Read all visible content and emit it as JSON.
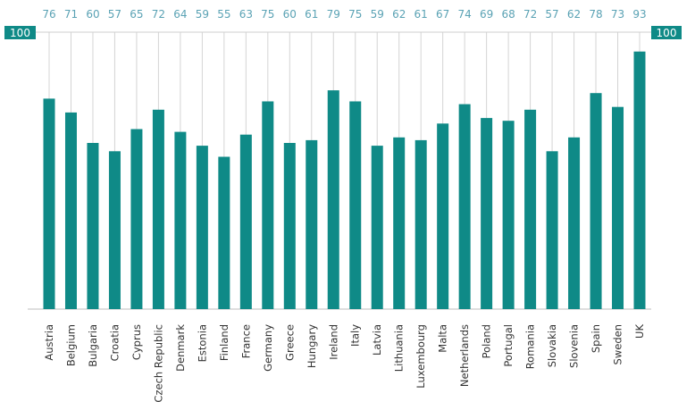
{
  "chart_data": {
    "type": "bar",
    "title": "",
    "xlabel": "",
    "ylabel": "",
    "ylim": [
      0,
      100
    ],
    "axis_max_label": "100",
    "grid": true,
    "bar_color": "#0f8a87",
    "label_color": "#5aa2b4",
    "categories": [
      "Austria",
      "Belgium",
      "Bulgaria",
      "Croatia",
      "Cyprus",
      "Czech Republic",
      "Denmark",
      "Estonia",
      "Finland",
      "France",
      "Germany",
      "Greece",
      "Hungary",
      "Ireland",
      "Italy",
      "Latvia",
      "Lithuania",
      "Luxembourg",
      "Malta",
      "Netherlands",
      "Poland",
      "Portugal",
      "Romania",
      "Slovakia",
      "Slovenia",
      "Spain",
      "Sweden",
      "UK"
    ],
    "values": [
      76,
      71,
      60,
      57,
      65,
      72,
      64,
      59,
      55,
      63,
      75,
      60,
      61,
      79,
      75,
      59,
      62,
      61,
      67,
      74,
      69,
      68,
      72,
      57,
      62,
      78,
      73,
      93
    ]
  }
}
